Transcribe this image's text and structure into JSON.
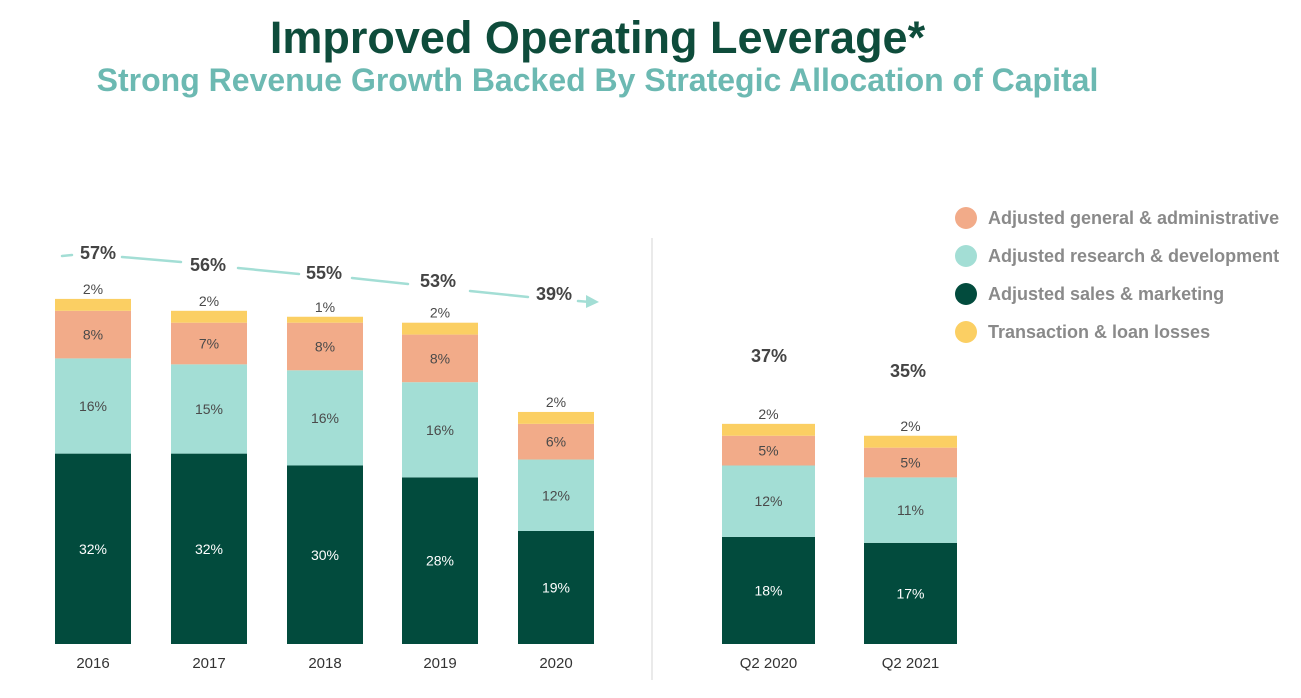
{
  "title": "Improved Operating Leverage*",
  "subtitle": "Strong Revenue Growth Backed By Strategic Allocation of Capital",
  "chart_data": {
    "type": "bar",
    "stacked": true,
    "unit": "%",
    "categories": [
      "2016",
      "2017",
      "2018",
      "2019",
      "2020",
      "Q2 2020",
      "Q2 2021"
    ],
    "totals": [
      57,
      56,
      55,
      53,
      39,
      37,
      35
    ],
    "series": [
      {
        "name": "Adjusted sales & marketing",
        "color": "#024b3d",
        "label_color": "#ffffff",
        "values": [
          32,
          32,
          30,
          28,
          19,
          18,
          17
        ]
      },
      {
        "name": "Adjusted research & development",
        "color": "#a3ded5",
        "label_color": "#4a4a4a",
        "values": [
          16,
          15,
          16,
          16,
          12,
          12,
          11
        ]
      },
      {
        "name": "Adjusted general & administrative",
        "color": "#f2ab89",
        "label_color": "#4a4a4a",
        "values": [
          8,
          7,
          8,
          8,
          6,
          5,
          5
        ]
      },
      {
        "name": "Transaction & loan losses",
        "color": "#fbcf63",
        "label_color": "#4a4a4a",
        "values": [
          2,
          2,
          1,
          2,
          2,
          2,
          2
        ]
      }
    ],
    "legend_order": [
      "Adjusted general & administrative",
      "Adjusted research & development",
      "Adjusted sales & marketing",
      "Transaction & loan losses"
    ],
    "legend_position": "right",
    "grid": false,
    "trend_arrow_color": "#a3ded5",
    "divider_color": "#e4e4e4"
  }
}
